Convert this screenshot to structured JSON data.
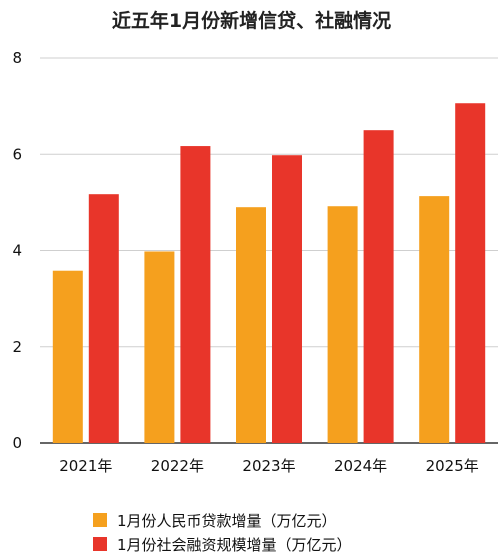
{
  "chart_data": {
    "type": "bar",
    "title": "近五年1月份新增信贷、社融情况",
    "categories": [
      "2021年",
      "2022年",
      "2023年",
      "2024年",
      "2025年"
    ],
    "series": [
      {
        "name": "1月份人民币贷款增量（万亿元）",
        "color": "#f5a01e",
        "values": [
          3.58,
          3.98,
          4.9,
          4.92,
          5.13
        ]
      },
      {
        "name": "1月份社会融资规模增量（万亿元）",
        "color": "#e8352a",
        "values": [
          5.17,
          6.17,
          5.98,
          6.5,
          7.06
        ]
      }
    ],
    "ylim": [
      0,
      8
    ],
    "yticks": [
      "0",
      "2",
      "4",
      "6",
      "8"
    ],
    "grid": true,
    "legend_position": "bottom"
  }
}
